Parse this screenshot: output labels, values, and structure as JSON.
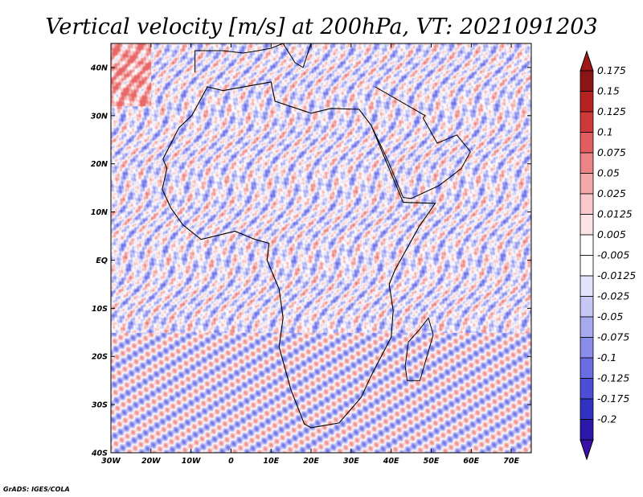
{
  "chart_data": {
    "type": "heatmap",
    "title": "Vertical velocity [m/s] at 200hPa, VT: 2021091203",
    "credit": "GrADS: IGES/COLA",
    "x_range": [
      -30,
      75
    ],
    "y_range": [
      -40,
      45
    ],
    "x_ticks": [
      {
        "value": -30,
        "label": "30W"
      },
      {
        "value": -20,
        "label": "20W"
      },
      {
        "value": -10,
        "label": "10W"
      },
      {
        "value": 0,
        "label": "0"
      },
      {
        "value": 10,
        "label": "10E"
      },
      {
        "value": 20,
        "label": "20E"
      },
      {
        "value": 30,
        "label": "30E"
      },
      {
        "value": 40,
        "label": "40E"
      },
      {
        "value": 50,
        "label": "50E"
      },
      {
        "value": 60,
        "label": "60E"
      },
      {
        "value": 70,
        "label": "70E"
      }
    ],
    "y_ticks": [
      {
        "value": 40,
        "label": "40N"
      },
      {
        "value": 30,
        "label": "30N"
      },
      {
        "value": 20,
        "label": "20N"
      },
      {
        "value": 10,
        "label": "10N"
      },
      {
        "value": 0,
        "label": "EQ"
      },
      {
        "value": -10,
        "label": "10S"
      },
      {
        "value": -20,
        "label": "20S"
      },
      {
        "value": -30,
        "label": "30S"
      },
      {
        "value": -40,
        "label": "40S"
      }
    ],
    "colorbar": {
      "labels": [
        "0.175",
        "0.15",
        "0.125",
        "0.1",
        "0.075",
        "0.05",
        "0.025",
        "0.0125",
        "0.005",
        "-0.005",
        "-0.0125",
        "-0.025",
        "-0.05",
        "-0.075",
        "-0.1",
        "-0.125",
        "-0.175",
        "-0.2"
      ],
      "colors": [
        "#8b1414",
        "#b42222",
        "#d0393c",
        "#e05e60",
        "#ec8486",
        "#f3a8aa",
        "#f8c8ca",
        "#fce3e4",
        "#ffffff",
        "#ffffff",
        "#e3e4fb",
        "#c6c8f5",
        "#a8aaf0",
        "#8a8ceb",
        "#6a6ce2",
        "#4c4ed6",
        "#3032c0",
        "#2a18a8"
      ],
      "arrow_top_color": "#a01818",
      "arrow_bottom_color": "#3a10a8"
    },
    "grid": false,
    "colormap": "blue-white-red diverging, negative = blue (sinking), positive = red (rising)"
  }
}
